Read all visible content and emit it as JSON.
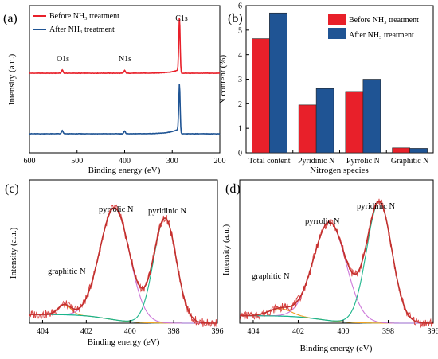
{
  "colors": {
    "red": "#e8202a",
    "blue": "#1f5494",
    "raw": "#d9403f",
    "envelope": "#c2302e",
    "pyrrolic_fit": "#cc77d9",
    "pyridinic_fit": "#1bb48a",
    "graphitic_fit": "#f0a020",
    "background": "#36c7d1"
  },
  "chart_data": [
    {
      "panel": "(a)",
      "type": "line",
      "xlabel": "Binding energy (eV)",
      "ylabel": "Intensity (a.u.)",
      "xlim": [
        600,
        200
      ],
      "xticks": [
        600,
        500,
        400,
        300,
        200
      ],
      "peak_labels": [
        {
          "text": "O1s",
          "x": 531
        },
        {
          "text": "N1s",
          "x": 400
        },
        {
          "text": "C1s",
          "x": 284.8
        }
      ],
      "series": [
        {
          "name": "Before NH₃ treatment",
          "color": "#e8202a",
          "baseline": 1.0,
          "offset": 0.72,
          "peaks": [
            {
              "x": 531,
              "h": 0.06
            },
            {
              "x": 400,
              "h": 0.05
            },
            {
              "x": 284.8,
              "h": 1.0
            }
          ],
          "background_step": 0.06
        },
        {
          "name": "After NH₃ treatment",
          "color": "#1f5494",
          "baseline": 1.0,
          "offset": 0.0,
          "peaks": [
            {
              "x": 531,
              "h": 0.06
            },
            {
              "x": 400,
              "h": 0.05
            },
            {
              "x": 284.8,
              "h": 0.95
            }
          ],
          "background_step": 0.09
        }
      ]
    },
    {
      "panel": "(b)",
      "type": "bar",
      "xlabel": "Nitrogen species",
      "ylabel": "N content (%)",
      "ylim": [
        0,
        6
      ],
      "yticks": [
        0,
        1,
        2,
        3,
        4,
        5,
        6
      ],
      "categories": [
        "Total content",
        "Pyridinic N",
        "Pyrrolic N",
        "Graphitic N"
      ],
      "series": [
        {
          "name": "Before NH₃ treatment",
          "color": "#e8202a",
          "values": [
            4.65,
            1.95,
            2.5,
            0.2
          ]
        },
        {
          "name": "After NH₃ treatment",
          "color": "#1f5494",
          "values": [
            5.7,
            2.62,
            3.0,
            0.18
          ]
        }
      ]
    },
    {
      "panel": "(c)",
      "type": "line",
      "xlabel": "Binding energy (eV)",
      "ylabel": "Intensity (a.u.)",
      "xlim": [
        404.6,
        396.0
      ],
      "ylim": [
        0,
        1.15
      ],
      "xticks": [
        404,
        402,
        400,
        398,
        396
      ],
      "background": {
        "left": 0.07,
        "right": 0.0
      },
      "components": [
        {
          "label": "graphitic N",
          "center": 403.0,
          "height": 0.08,
          "sigma": 0.3
        },
        {
          "label": "pyrrolic N",
          "center": 400.7,
          "height": 0.9,
          "sigma": 0.68
        },
        {
          "label": "pyridinic N",
          "center": 398.4,
          "height": 0.84,
          "sigma": 0.52
        }
      ]
    },
    {
      "panel": "(d)",
      "type": "line",
      "xlabel": "Binding energy (eV)",
      "ylabel": "Intensity (a.u.)",
      "xlim": [
        404.6,
        396.0
      ],
      "ylim": [
        0,
        1.15
      ],
      "xticks": [
        404,
        402,
        400,
        398,
        396
      ],
      "background": {
        "left": 0.06,
        "right": 0.0
      },
      "components": [
        {
          "label": "graphitic N",
          "center": 402.8,
          "height": 0.06,
          "sigma": 0.5
        },
        {
          "label": "pyrrolic N",
          "center": 400.6,
          "height": 0.79,
          "sigma": 0.72
        },
        {
          "label": "pyridinic N",
          "center": 398.4,
          "height": 0.97,
          "sigma": 0.56
        }
      ]
    }
  ]
}
